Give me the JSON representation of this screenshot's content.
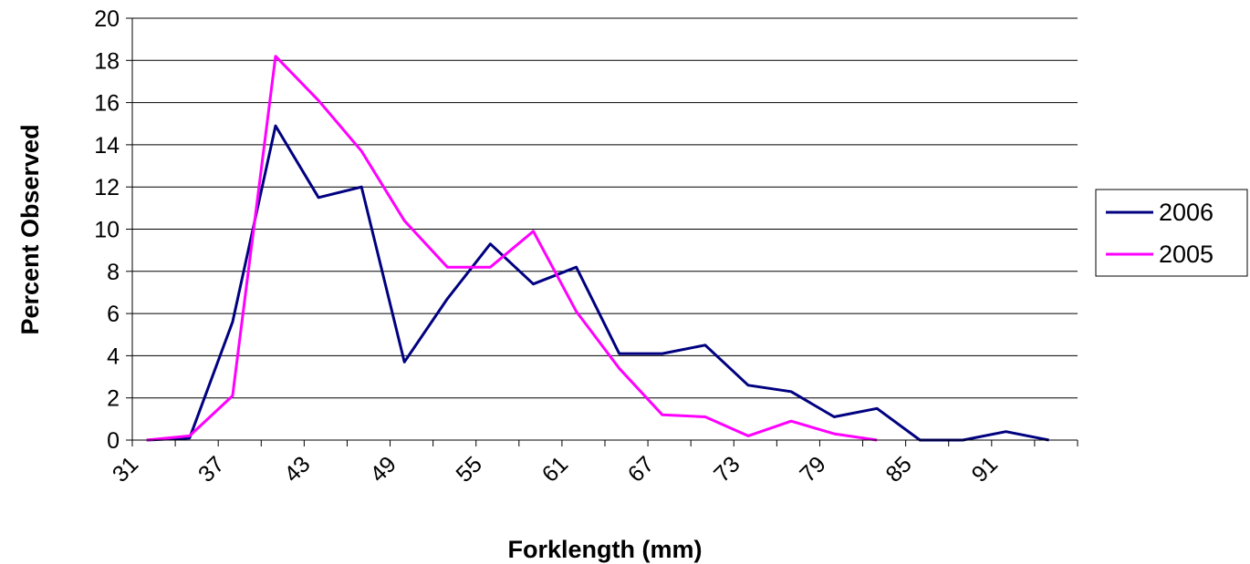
{
  "chart_data": {
    "type": "line",
    "xlabel": "Forklength (mm)",
    "ylabel": "Percent Observed",
    "ylim": [
      0,
      20
    ],
    "y_ticks": [
      "0",
      "2",
      "4",
      "6",
      "8",
      "10",
      "12",
      "14",
      "16",
      "18",
      "20"
    ],
    "x": [
      32,
      35,
      38,
      41,
      44,
      47,
      50,
      53,
      56,
      59,
      62,
      65,
      68,
      71,
      74,
      77,
      80,
      83,
      86,
      89,
      92,
      95
    ],
    "x_tick_labels": [
      "31",
      "37",
      "43",
      "49",
      "55",
      "61",
      "67",
      "73",
      "79",
      "85",
      "91"
    ],
    "grid": true,
    "legend_position": "right",
    "series": [
      {
        "name": "2006",
        "color": "#000080",
        "values": [
          0,
          0.1,
          5.6,
          14.9,
          11.5,
          12.0,
          3.7,
          6.7,
          9.3,
          7.4,
          8.2,
          4.1,
          4.1,
          4.5,
          2.6,
          2.3,
          1.1,
          1.5,
          0,
          0,
          0.4,
          0
        ]
      },
      {
        "name": "2005",
        "color": "#ff00ff",
        "values": [
          0,
          0.2,
          2.1,
          18.2,
          16.1,
          13.7,
          10.4,
          8.2,
          8.2,
          9.9,
          6.1,
          3.4,
          1.2,
          1.1,
          0.2,
          0.9,
          0.3,
          0,
          null,
          null,
          null,
          null
        ]
      }
    ]
  }
}
